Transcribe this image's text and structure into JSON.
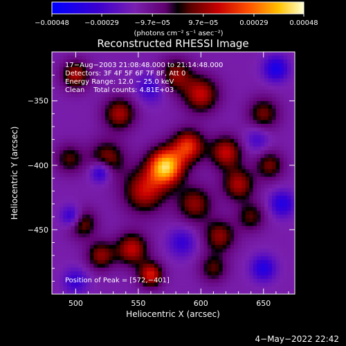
{
  "chart_data": {
    "type": "heatmap",
    "title": "Reconstructed RHESSI Image",
    "xlabel": "Heliocentric X (arcsec)",
    "ylabel": "Heliocentric Y (arcsec)",
    "xlim": [
      481,
      675
    ],
    "ylim": [
      -500,
      -312
    ],
    "x_ticks": [
      500,
      550,
      600,
      650
    ],
    "y_ticks": [
      -350,
      -400,
      -450
    ],
    "x_tick_labels": [
      "500",
      "550",
      "600",
      "650"
    ],
    "y_tick_labels": [
      "−350",
      "−400",
      "−450"
    ],
    "colorbar": {
      "min": -0.00048,
      "max": 0.00048,
      "tick_labels": [
        "−0.00048",
        "−0.00029",
        "−9.7e−05",
        "9.7e−05",
        "0.00029",
        "0.00048"
      ],
      "units_label": "(photons cm⁻² s⁻¹ asec⁻²)"
    },
    "annotations": [
      "17−Aug−2003 21:08:48.000 to 21:14:48.000",
      "Detectors: 3F 4F 5F 6F 7F 8F, Att 0",
      "Energy Range: 12.0 − 25.0 keV",
      "Clean    Total counts: 4.81E+03"
    ],
    "peak_text": "Position of Peak = [572,−401]",
    "peak": {
      "x": 572,
      "y": -401
    },
    "sources": [
      {
        "x": 572,
        "y": -401,
        "amp": 1.0,
        "s": 10
      },
      {
        "x": 590,
        "y": -385,
        "amp": 0.65,
        "s": 9
      },
      {
        "x": 555,
        "y": -420,
        "amp": 0.55,
        "s": 12
      },
      {
        "x": 535,
        "y": -360,
        "amp": 0.5,
        "s": 9
      },
      {
        "x": 600,
        "y": -345,
        "amp": 0.55,
        "s": 10
      },
      {
        "x": 620,
        "y": -390,
        "amp": 0.55,
        "s": 9
      },
      {
        "x": 630,
        "y": -415,
        "amp": 0.5,
        "s": 9
      },
      {
        "x": 525,
        "y": -395,
        "amp": 0.45,
        "s": 10
      },
      {
        "x": 595,
        "y": -430,
        "amp": 0.45,
        "s": 10
      },
      {
        "x": 545,
        "y": -465,
        "amp": 0.55,
        "s": 9
      },
      {
        "x": 560,
        "y": -485,
        "amp": 0.6,
        "s": 7
      },
      {
        "x": 505,
        "y": -445,
        "amp": 0.45,
        "s": 8
      },
      {
        "x": 520,
        "y": -470,
        "amp": 0.45,
        "s": 8
      },
      {
        "x": 500,
        "y": -330,
        "amp": 0.5,
        "s": 8
      },
      {
        "x": 615,
        "y": -455,
        "amp": 0.45,
        "s": 9
      },
      {
        "x": 650,
        "y": -360,
        "amp": 0.4,
        "s": 9
      },
      {
        "x": 655,
        "y": -400,
        "amp": 0.4,
        "s": 8
      },
      {
        "x": 580,
        "y": -330,
        "amp": 0.45,
        "s": 9
      },
      {
        "x": 640,
        "y": -440,
        "amp": 0.35,
        "s": 8
      },
      {
        "x": 495,
        "y": -395,
        "amp": 0.35,
        "s": 8
      },
      {
        "x": 610,
        "y": -480,
        "amp": 0.35,
        "s": 8
      },
      {
        "x": 520,
        "y": -405,
        "amp": -0.5,
        "s": 6
      },
      {
        "x": 497,
        "y": -440,
        "amp": -0.45,
        "s": 6
      },
      {
        "x": 660,
        "y": -325,
        "amp": -0.45,
        "s": 7
      },
      {
        "x": 665,
        "y": -430,
        "amp": -0.4,
        "s": 7
      },
      {
        "x": 650,
        "y": -480,
        "amp": -0.4,
        "s": 7
      },
      {
        "x": 560,
        "y": -340,
        "amp": -0.3,
        "s": 8
      },
      {
        "x": 585,
        "y": -460,
        "amp": -0.3,
        "s": 8
      },
      {
        "x": 500,
        "y": -490,
        "amp": -0.3,
        "s": 7
      },
      {
        "x": 645,
        "y": -380,
        "amp": -0.25,
        "s": 7
      }
    ]
  },
  "footer": {
    "timestamp": "4−May−2022 22:42"
  }
}
